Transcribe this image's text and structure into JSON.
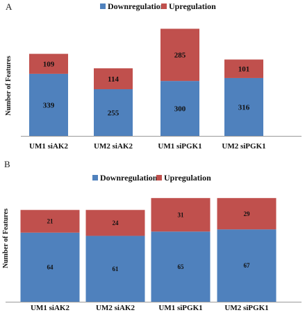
{
  "chart_data": [
    {
      "panel_label": "A",
      "type": "bar",
      "stacked": true,
      "ylabel": "Number of Features",
      "categories": [
        "UM1 siAK2",
        "UM2 siAK2",
        "UM1 siPGK1",
        "UM2 siPGK1"
      ],
      "series": [
        {
          "name": "Downregulation",
          "color": "#4f81bd",
          "values": [
            339,
            255,
            300,
            316
          ]
        },
        {
          "name": "Upregulation",
          "color": "#c0504d",
          "values": [
            109,
            114,
            285,
            101
          ]
        }
      ],
      "ylim": [
        0,
        600
      ],
      "legend": "top-center",
      "grid": false
    },
    {
      "panel_label": "B",
      "type": "bar",
      "stacked": true,
      "ylabel": "Number of Features",
      "categories": [
        "UM1 siAK2",
        "UM2 siAK2",
        "UM1 siPGK1",
        "UM2 siPGK1"
      ],
      "series": [
        {
          "name": "Downregulation",
          "color": "#4f81bd",
          "values": [
            64,
            61,
            65,
            67
          ]
        },
        {
          "name": "Upregulation",
          "color": "#c0504d",
          "values": [
            21,
            24,
            31,
            29
          ]
        }
      ],
      "ylim": [
        0,
        100
      ],
      "legend": "top-center",
      "grid": false
    }
  ]
}
